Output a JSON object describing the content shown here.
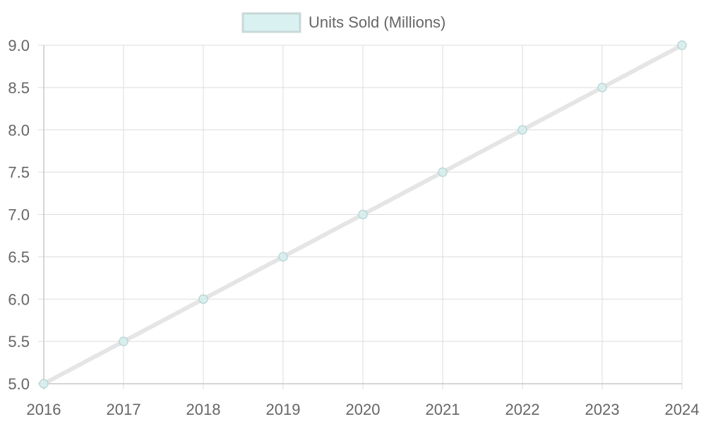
{
  "chart_data": {
    "type": "line",
    "title": "",
    "xlabel": "",
    "ylabel": "",
    "categories": [
      "2016",
      "2017",
      "2018",
      "2019",
      "2020",
      "2021",
      "2022",
      "2023",
      "2024"
    ],
    "series": [
      {
        "name": "Units Sold (Millions)",
        "values": [
          5.0,
          5.5,
          6.0,
          6.5,
          7.0,
          7.5,
          8.0,
          8.5,
          9.0
        ]
      }
    ],
    "ylim": [
      5.0,
      9.0
    ],
    "y_ticks": [
      "5.0",
      "5.5",
      "6.0",
      "6.5",
      "7.0",
      "7.5",
      "8.0",
      "8.5",
      "9.0"
    ],
    "grid": true,
    "legend_position": "top-center"
  },
  "colors": {
    "line": "#e5e5e5",
    "point_fill": "#d7efef",
    "point_stroke": "#b9d7d7",
    "legend_swatch_fill": "#d9f1f1",
    "legend_swatch_stroke": "#c8d8d8",
    "grid": "#dddddd",
    "axis": "#c8c8c8",
    "text": "#666666"
  }
}
